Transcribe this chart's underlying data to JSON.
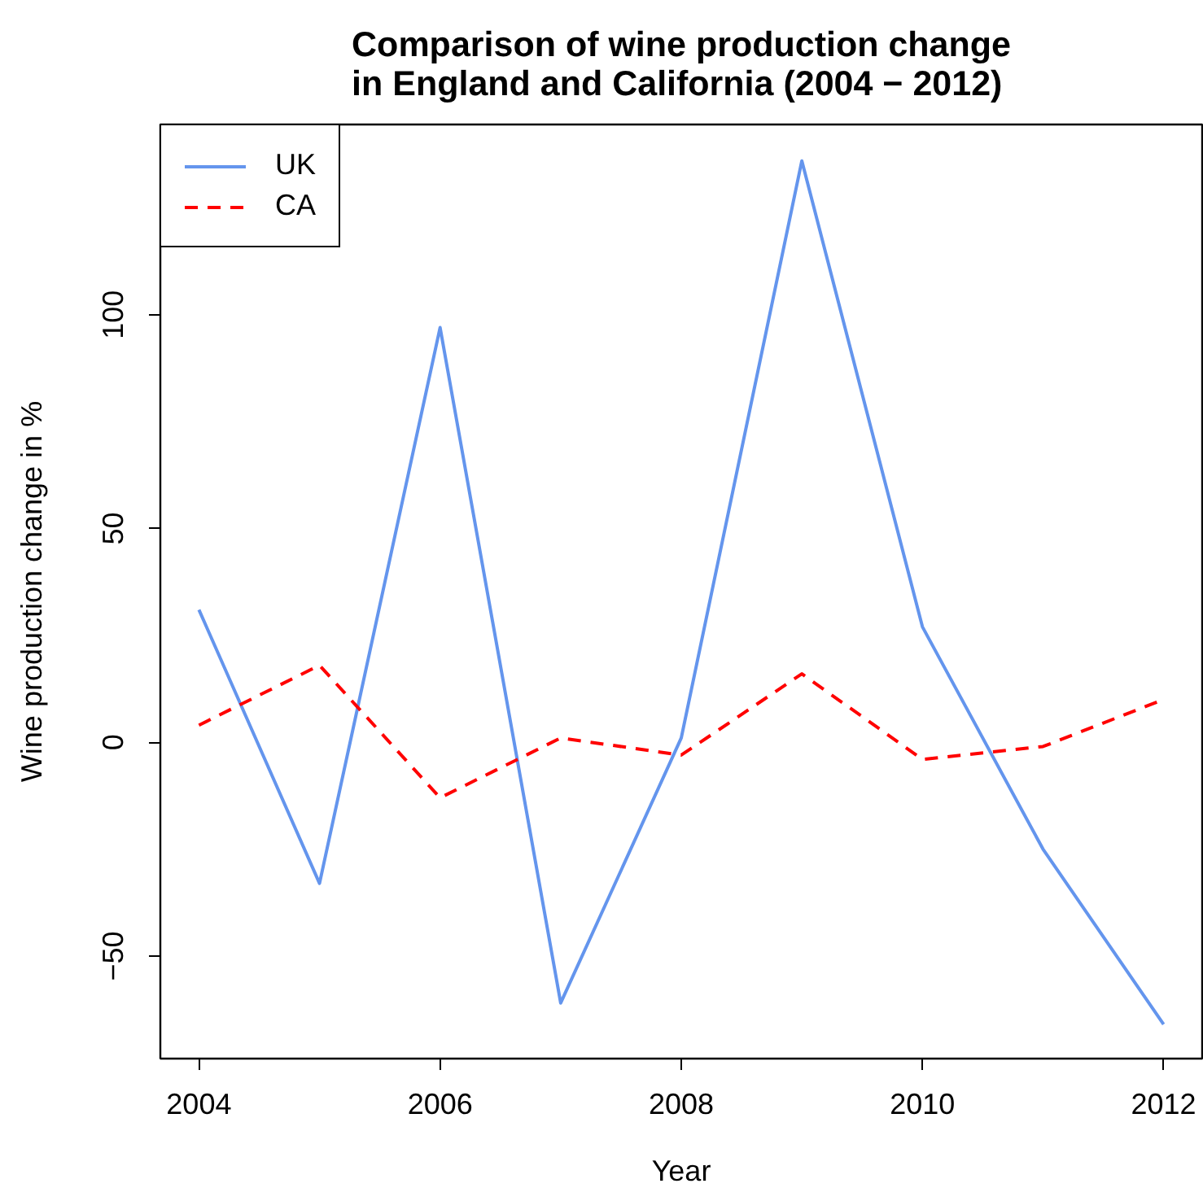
{
  "chart_data": {
    "type": "line",
    "title": "Comparison of wine production change\nin England and California (2004 − 2012)",
    "xlabel": "Year",
    "ylabel": "Wine production change in %",
    "x": [
      2004,
      2005,
      2006,
      2007,
      2008,
      2009,
      2010,
      2011,
      2012
    ],
    "series": [
      {
        "name": "UK",
        "color": "#6495ed",
        "line_style": "solid",
        "values": [
          31,
          -33,
          97,
          -61,
          1,
          136,
          27,
          -25,
          -66
        ]
      },
      {
        "name": "CA",
        "color": "#ff0000",
        "line_style": "dashed",
        "values": [
          4,
          18,
          -13,
          1,
          -3,
          16,
          -4,
          -1,
          10
        ]
      }
    ],
    "xlim": [
      2003.68,
      2012.32
    ],
    "ylim": [
      -74,
      144.5
    ],
    "xticks": [
      2004,
      2006,
      2008,
      2010,
      2012
    ],
    "yticks": [
      -50,
      0,
      50,
      100
    ],
    "grid": false,
    "legend": "top left",
    "marker": "none"
  }
}
